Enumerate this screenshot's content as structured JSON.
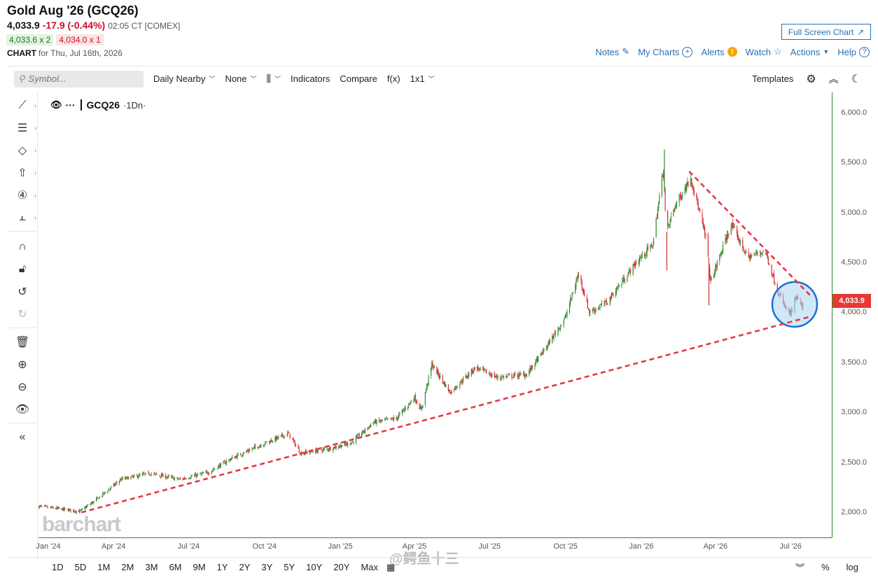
{
  "header": {
    "title": "Gold Aug '26 (GCQ26)",
    "last": "4,033.9",
    "change": "-17.9 (-0.44%)",
    "time": "02:05 CT [COMEX]",
    "bid": "4,033.6 x 2",
    "ask": "4,034.0 x 1",
    "chart_label": "CHART",
    "chart_date": "for Thu, Jul 16th, 2026",
    "fullscreen_label": "Full Screen Chart"
  },
  "top_links": {
    "notes": "Notes",
    "my_charts": "My Charts",
    "alerts": "Alerts",
    "watch": "Watch",
    "actions": "Actions",
    "help": "Help"
  },
  "toolbar": {
    "search_placeholder": "Symbol...",
    "daily_nearby": "Daily Nearby",
    "none": "None",
    "indicators": "Indicators",
    "compare": "Compare",
    "fx": "f(x)",
    "layout": "1x1",
    "templates": "Templates"
  },
  "legend": {
    "symbol": "GCQ26",
    "resolution": "·1Dn·"
  },
  "watermark": "barchart",
  "weibo": "@鳄鱼十三",
  "price_tag": "4,033.9",
  "bottom": {
    "periods": [
      "1D",
      "5D",
      "1M",
      "2M",
      "3M",
      "6M",
      "9M",
      "1Y",
      "2Y",
      "3Y",
      "5Y",
      "10Y",
      "20Y",
      "Max"
    ],
    "pct": "%",
    "log": "log"
  },
  "colors": {
    "up": "#2e8b2e",
    "down": "#d32f2f",
    "trendline": "#e53945",
    "accent": "#2c6fb1",
    "circle_fill": "#a9d4f5",
    "circle_stroke": "#1e6fd0"
  },
  "chart_data": {
    "type": "candlestick",
    "symbol": "GCQ26",
    "xlabel": "",
    "ylabel": "",
    "ylim": [
      1750,
      6200
    ],
    "y_ticks": [
      2000,
      2500,
      3000,
      3500,
      4000,
      4500,
      5000,
      5500,
      6000
    ],
    "y_tick_labels": [
      "2,000.0",
      "2,500.0",
      "3,000.0",
      "3,500.0",
      "4,000.0",
      "4,500.0",
      "5,000.0",
      "5,500.0",
      "6,000.0"
    ],
    "x_ticks": [
      {
        "label": "Jan '24",
        "date": "2024-01-01"
      },
      {
        "label": "Apr '24",
        "date": "2024-04-01"
      },
      {
        "label": "Jul '24",
        "date": "2024-07-01"
      },
      {
        "label": "Oct '24",
        "date": "2024-10-01"
      },
      {
        "label": "Jan '25",
        "date": "2025-01-01"
      },
      {
        "label": "Apr '25",
        "date": "2025-04-01"
      },
      {
        "label": "Jul '25",
        "date": "2025-07-01"
      },
      {
        "label": "Oct '25",
        "date": "2025-10-01"
      },
      {
        "label": "Jan '26",
        "date": "2026-01-01"
      },
      {
        "label": "Apr '26",
        "date": "2026-04-01"
      },
      {
        "label": "Jul '26",
        "date": "2026-07-01"
      }
    ],
    "x_range": [
      "2024-01-01",
      "2026-08-20"
    ],
    "close_path": [
      [
        "2024-01-01",
        2060
      ],
      [
        "2024-02-01",
        2030
      ],
      [
        "2024-02-20",
        2010
      ],
      [
        "2024-03-10",
        2120
      ],
      [
        "2024-04-10",
        2330
      ],
      [
        "2024-05-15",
        2390
      ],
      [
        "2024-06-20",
        2330
      ],
      [
        "2024-07-25",
        2400
      ],
      [
        "2024-08-20",
        2530
      ],
      [
        "2024-09-25",
        2670
      ],
      [
        "2024-10-30",
        2790
      ],
      [
        "2024-11-14",
        2590
      ],
      [
        "2024-12-20",
        2640
      ],
      [
        "2025-01-15",
        2700
      ],
      [
        "2025-02-10",
        2900
      ],
      [
        "2025-03-10",
        2940
      ],
      [
        "2025-04-01",
        3150
      ],
      [
        "2025-04-09",
        3020
      ],
      [
        "2025-04-22",
        3480
      ],
      [
        "2025-05-14",
        3200
      ],
      [
        "2025-06-14",
        3450
      ],
      [
        "2025-07-10",
        3350
      ],
      [
        "2025-08-15",
        3380
      ],
      [
        "2025-09-05",
        3620
      ],
      [
        "2025-10-01",
        3950
      ],
      [
        "2025-10-17",
        4390
      ],
      [
        "2025-10-30",
        4000
      ],
      [
        "2025-11-20",
        4100
      ],
      [
        "2025-12-26",
        4500
      ],
      [
        "2026-01-15",
        4680
      ],
      [
        "2026-01-28",
        5450
      ],
      [
        "2026-01-31",
        4780
      ],
      [
        "2026-02-10",
        5050
      ],
      [
        "2026-03-02",
        5350
      ],
      [
        "2026-03-20",
        4750
      ],
      [
        "2026-03-26",
        4300
      ],
      [
        "2026-04-10",
        4650
      ],
      [
        "2026-04-20",
        4880
      ],
      [
        "2026-05-10",
        4550
      ],
      [
        "2026-05-31",
        4620
      ],
      [
        "2026-06-12",
        4300
      ],
      [
        "2026-06-22",
        4080
      ],
      [
        "2026-07-01",
        3980
      ],
      [
        "2026-07-08",
        4150
      ],
      [
        "2026-07-16",
        4033.9
      ]
    ],
    "wick_extremes": [
      {
        "date": "2026-01-29",
        "high": 5630
      },
      {
        "date": "2026-02-01",
        "low": 4420
      },
      {
        "date": "2026-03-24",
        "low": 4070
      }
    ],
    "last_price": 4033.9,
    "trendlines": [
      {
        "style": "dashed",
        "from": [
          "2024-02-22",
          2000
        ],
        "to": [
          "2026-07-26",
          3960
        ]
      },
      {
        "style": "dashed",
        "from": [
          "2026-02-28",
          5410
        ],
        "to": [
          "2026-07-26",
          4160
        ]
      }
    ],
    "highlight_circle": {
      "center": [
        "2026-07-06",
        4080
      ]
    }
  }
}
